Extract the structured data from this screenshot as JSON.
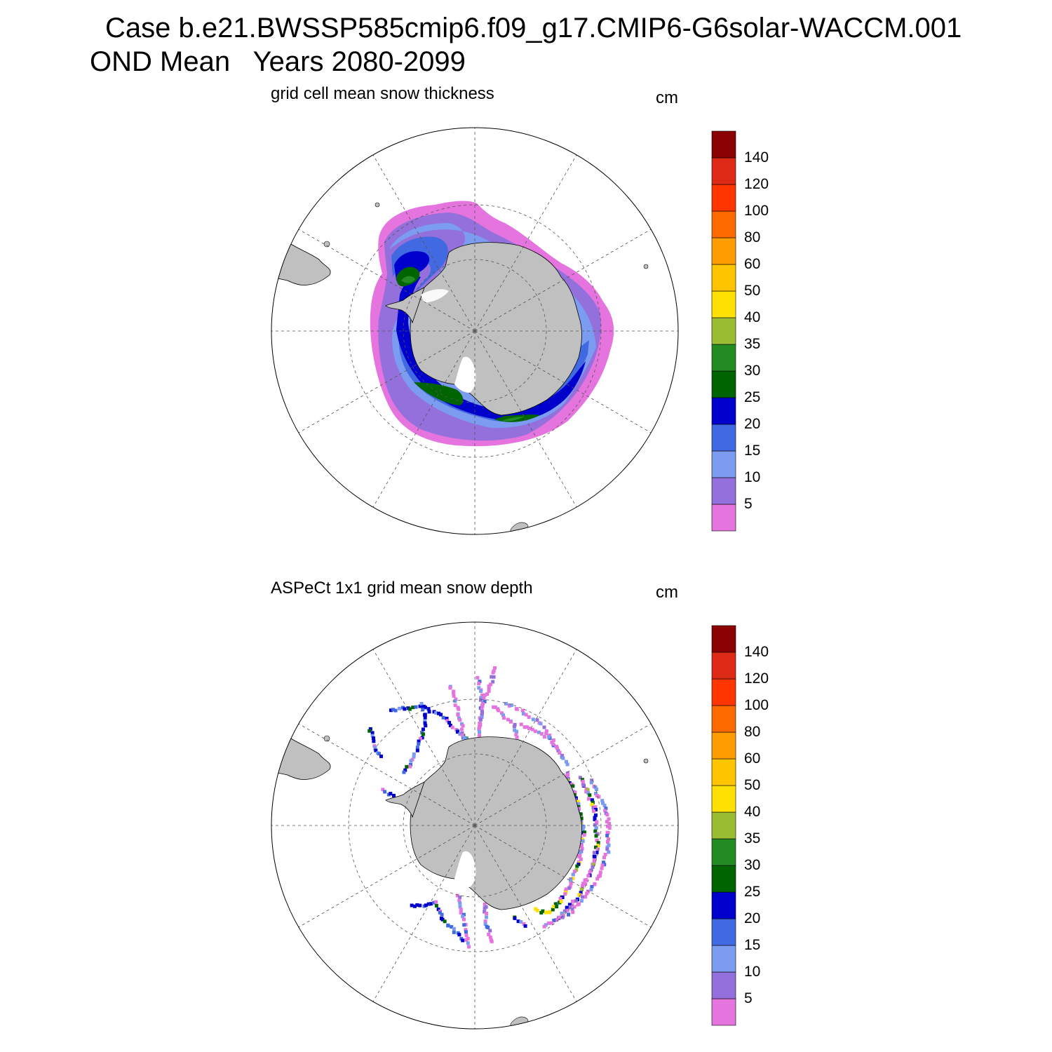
{
  "header": {
    "case_line": "Case b.e21.BWSSP585cmip6.f09_g17.CMIP6-G6solar-WACCM.001",
    "period_line": "OND Mean   Years 2080-2099"
  },
  "panels": [
    {
      "title": "grid cell mean snow thickness",
      "units": "cm"
    },
    {
      "title": "ASPeCt 1x1 grid mean snow depth",
      "units": "cm"
    }
  ],
  "colorbar": {
    "levels": [
      "5",
      "10",
      "15",
      "20",
      "25",
      "30",
      "35",
      "40",
      "50",
      "60",
      "80",
      "100",
      "120",
      "140"
    ],
    "colors": [
      "#e574de",
      "#9370db",
      "#7b9cf0",
      "#4169e1",
      "#0000cd",
      "#006400",
      "#228b22",
      "#9abd34",
      "#ffe000",
      "#ffc400",
      "#ff9c00",
      "#ff6a00",
      "#ff3500",
      "#dc2a16",
      "#8b0000"
    ]
  },
  "colors": {
    "land": "#c0c0c0",
    "grid": "#555555",
    "frame": "#000000"
  }
}
